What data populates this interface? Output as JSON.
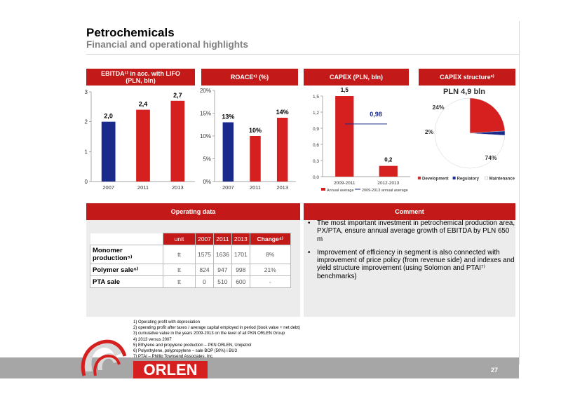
{
  "title": "Petrochemicals",
  "subtitle": "Financial and operational highlights",
  "page_number": "27",
  "logo_text": "ORLEN",
  "colors": {
    "accent": "#c41919",
    "navy": "#1a2a8c",
    "panel": "#ececec"
  },
  "headers": {
    "ebitda_line1": "EBITDA¹⁾ in acc. with LIFO",
    "ebitda_line2": "(PLN, bln)",
    "roace": "ROACE²⁾ (%)",
    "capex": "CAPEX (PLN, bln)",
    "capex_structure": "CAPEX structure³⁾",
    "operating": "Operating data",
    "comment": "Comment"
  },
  "chart_data": [
    {
      "type": "bar",
      "categories": [
        "2007",
        "2011",
        "2013"
      ],
      "values": [
        2.0,
        2.4,
        2.7
      ],
      "value_labels": [
        "2,0",
        "2,4",
        "2,7"
      ],
      "yticks": [
        "0",
        "1",
        "2",
        "3"
      ],
      "ylim": [
        0,
        3
      ],
      "bar_colors": [
        "#1a2a8c",
        "#d61f1f",
        "#d61f1f"
      ]
    },
    {
      "type": "bar",
      "categories": [
        "2007",
        "2011",
        "2013"
      ],
      "values": [
        13,
        10,
        14
      ],
      "value_labels": [
        "13%",
        "10%",
        "14%"
      ],
      "yticks": [
        "0%",
        "5%",
        "10%",
        "15%",
        "20%"
      ],
      "ylim": [
        0,
        20
      ],
      "bar_colors": [
        "#1a2a8c",
        "#d61f1f",
        "#d61f1f"
      ]
    },
    {
      "type": "bar",
      "categories": [
        "2009-2011",
        "2012-2013"
      ],
      "values": [
        1.5,
        0.2
      ],
      "value_labels": [
        "1,5",
        "0,2"
      ],
      "average": 0.98,
      "average_label": "0,98",
      "yticks": [
        "0,0",
        "0,3",
        "0,6",
        "0,9",
        "1,2",
        "1,5"
      ],
      "ylim": [
        0,
        1.5
      ],
      "legend": [
        "Annual average",
        "2009-2013 annual average"
      ]
    },
    {
      "type": "pie",
      "total_label": "PLN 4,9 bln",
      "slices": [
        {
          "name": "Development",
          "value": 24,
          "label": "24%",
          "color": "#d61f1f"
        },
        {
          "name": "Regulatory",
          "value": 2,
          "label": "2%",
          "color": "#1a2a8c"
        },
        {
          "name": "Maintenance",
          "value": 74,
          "label": "74%",
          "color": "#ffffff"
        }
      ]
    }
  ],
  "operating_table": {
    "headers": [
      "unit",
      "2007",
      "2011",
      "2013",
      "Change⁴⁾"
    ],
    "rows": [
      {
        "label1": "Monomer",
        "label2": "production⁵⁾",
        "unit": "tt",
        "v2007": "1575",
        "v2011": "1636",
        "v2013": "1701",
        "change": "8%"
      },
      {
        "label1": "Polymer sale⁶⁾",
        "label2": "",
        "unit": "tt",
        "v2007": "824",
        "v2011": "947",
        "v2013": "998",
        "change": "21%"
      },
      {
        "label1": "PTA sale",
        "label2": "",
        "unit": "tt",
        "v2007": "0",
        "v2011": "510",
        "v2013": "600",
        "change": "-"
      }
    ]
  },
  "comments": [
    "The most important investment in petrochemical production area, PX/PTA, ensure annual average growth of EBITDA by PLN 650 m",
    "Improvement of efficiency in segment is also connected with improvement of price policy (from revenue side) and  indexes and yield structure improvement (using Solomon and PTAI⁷⁾ benchmarks)"
  ],
  "footnotes": [
    "1) Operating profit with depreciation",
    "2) operating profit after taxes / average capital employed in period (book value + net debt)",
    "3) cumulative value in the years 2009-2013 on the level of all PKN ORLEN Group",
    "4) 2013 versus 2007",
    "5) Ethylene and propylene production – PKN ORLEN, Unipetrol",
    "6) Polyethylene, polypropylene – sale BOP (50%) i BU3",
    "7) PTAI – Phillip Townsend Associates, Inc."
  ]
}
